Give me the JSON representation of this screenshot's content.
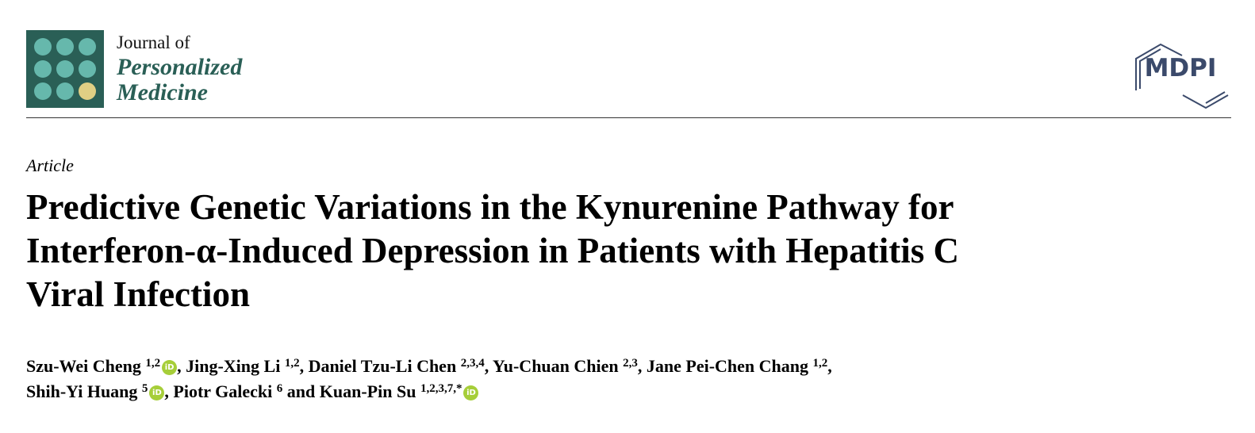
{
  "header": {
    "journal_line1": "Journal of",
    "journal_line2": "Personalized",
    "journal_line3": "Medicine",
    "publisher_logo_text": "MDPI",
    "colors": {
      "journal_green": "#2a5f56",
      "dot_teal": "#66b8ac",
      "dot_yellow": "#e0cf84",
      "mdpi_blue": "#3b4a6b",
      "orcid_green": "#a6ce39"
    }
  },
  "article": {
    "type": "Article",
    "title_lines": [
      "Predictive Genetic Variations in the Kynurenine Pathway for",
      "Interferon-α-Induced Depression in Patients with Hepatitis C",
      "Viral Infection"
    ],
    "authors": [
      {
        "name": "Szu-Wei Cheng",
        "affil": "1,2",
        "orcid": true,
        "sep": ", "
      },
      {
        "name": "Jing-Xing Li",
        "affil": "1,2",
        "orcid": false,
        "sep": ", "
      },
      {
        "name": "Daniel Tzu-Li Chen",
        "affil": "2,3,4",
        "orcid": false,
        "sep": ", "
      },
      {
        "name": "Yu-Chuan Chien",
        "affil": "2,3",
        "orcid": false,
        "sep": ", "
      },
      {
        "name": "Jane Pei-Chen Chang",
        "affil": "1,2",
        "orcid": false,
        "sep": ","
      },
      {
        "name": "Shih-Yi Huang",
        "affil": "5",
        "orcid": true,
        "sep": ", "
      },
      {
        "name": "Piotr Galecki",
        "affil": "6",
        "orcid": false,
        "sep": " and "
      },
      {
        "name": "Kuan-Pin Su",
        "affil": "1,2,3,7,*",
        "orcid": true,
        "sep": ""
      }
    ],
    "orcid_icon_text": "iD"
  }
}
